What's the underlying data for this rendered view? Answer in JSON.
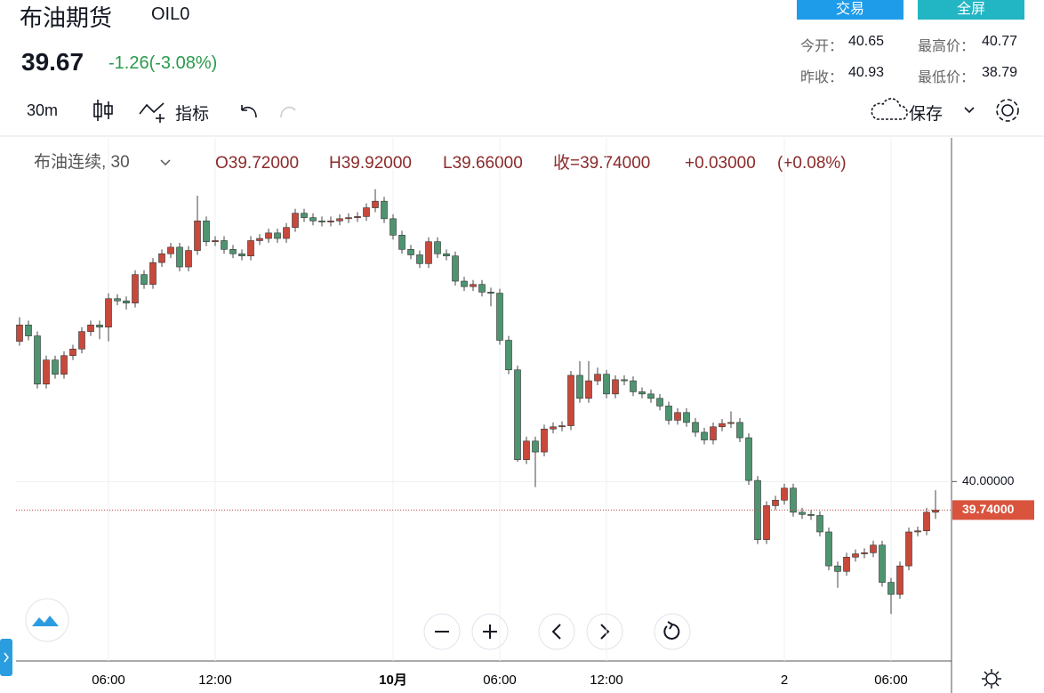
{
  "header": {
    "title": "布油期货",
    "code": "OIL0",
    "price": "39.67",
    "change": "-1.26(-3.08%)",
    "buttons": [
      "交易",
      "全屏"
    ],
    "stats": [
      {
        "label": "今开：",
        "value": "40.65"
      },
      {
        "label": "最高价：",
        "value": "40.77"
      },
      {
        "label": "昨收：",
        "value": "40.93"
      },
      {
        "label": "最低价：",
        "value": "38.79"
      }
    ]
  },
  "toolbar": {
    "interval": "30m",
    "indicators": "指标",
    "save": "保存"
  },
  "chart_data": {
    "type": "candlestick",
    "legend_title": "布油连续, 30",
    "ohlc_labels": [
      "O39.72000",
      "H39.92000",
      "L39.66000",
      "收=39.74000",
      "+0.03000",
      "(+0.08%)"
    ],
    "up_color": "#c8493b",
    "down_color": "#4f9470",
    "categories": [
      null,
      null,
      null,
      null,
      null,
      null,
      null,
      null,
      null,
      null,
      "06:00",
      null,
      null,
      null,
      null,
      null,
      null,
      null,
      null,
      null,
      null,
      null,
      "12:00",
      null,
      null,
      null,
      null,
      null,
      null,
      null,
      null,
      null,
      null,
      null,
      null,
      null,
      null,
      null,
      null,
      null,
      null,
      null,
      "10月",
      null,
      null,
      null,
      null,
      null,
      null,
      null,
      null,
      null,
      null,
      null,
      "06:00",
      null,
      null,
      null,
      null,
      null,
      null,
      null,
      null,
      null,
      null,
      null,
      "12:00",
      null,
      null,
      null,
      null,
      null,
      null,
      null,
      null,
      null,
      null,
      null,
      null,
      null,
      null,
      null,
      null,
      null,
      null,
      null,
      "2",
      null,
      null,
      null,
      null,
      null,
      null,
      null,
      null,
      null,
      null,
      null,
      "06:00",
      null,
      null,
      null,
      null,
      null
    ],
    "open": [
      41.28,
      41.43,
      41.33,
      40.89,
      41.11,
      40.98,
      41.15,
      41.21,
      41.37,
      41.43,
      41.41,
      41.67,
      41.65,
      41.63,
      41.89,
      41.8,
      42.0,
      42.08,
      42.14,
      41.96,
      42.11,
      42.38,
      42.19,
      42.2,
      42.12,
      42.08,
      42.06,
      42.2,
      42.22,
      42.27,
      42.22,
      42.32,
      42.45,
      42.41,
      42.38,
      42.37,
      42.38,
      42.4,
      42.41,
      42.42,
      42.5,
      42.56,
      42.4,
      42.25,
      42.12,
      42.07,
      41.99,
      42.19,
      42.08,
      42.06,
      41.83,
      41.78,
      41.8,
      41.73,
      41.72,
      41.29,
      41.02,
      40.2,
      40.37,
      40.27,
      40.48,
      40.5,
      40.51,
      40.97,
      40.76,
      40.92,
      40.98,
      40.8,
      40.93,
      40.92,
      40.82,
      40.8,
      40.76,
      40.69,
      40.56,
      40.63,
      40.54,
      40.45,
      40.38,
      40.5,
      40.53,
      40.54,
      40.4,
      40.01,
      39.47,
      39.78,
      39.83,
      39.94,
      39.72,
      39.7,
      39.69,
      39.54,
      39.23,
      39.18,
      39.31,
      39.34,
      39.35,
      39.42,
      39.08,
      38.97,
      39.23,
      39.54,
      39.55,
      39.72
    ],
    "high": [
      41.5,
      41.47,
      41.37,
      41.15,
      41.15,
      41.19,
      41.25,
      41.41,
      41.47,
      41.47,
      41.72,
      41.71,
      41.69,
      41.93,
      41.93,
      42.04,
      42.12,
      42.18,
      42.18,
      42.15,
      42.61,
      42.42,
      42.24,
      42.24,
      42.16,
      42.12,
      42.24,
      42.26,
      42.31,
      42.31,
      42.36,
      42.49,
      42.49,
      42.45,
      42.42,
      42.42,
      42.44,
      42.45,
      42.46,
      42.54,
      42.67,
      42.6,
      42.44,
      42.29,
      42.16,
      42.11,
      42.23,
      42.23,
      42.12,
      42.1,
      41.87,
      41.84,
      41.84,
      41.77,
      41.76,
      41.33,
      41.06,
      40.41,
      40.41,
      40.52,
      40.54,
      40.55,
      41.01,
      41.1,
      41.1,
      41.04,
      41.02,
      40.97,
      40.97,
      40.96,
      40.86,
      40.84,
      40.8,
      40.73,
      40.67,
      40.67,
      40.58,
      40.49,
      40.54,
      40.57,
      40.64,
      40.58,
      40.44,
      40.05,
      39.82,
      39.87,
      39.98,
      39.98,
      39.76,
      39.74,
      39.73,
      39.58,
      39.27,
      39.35,
      39.38,
      39.39,
      39.46,
      39.46,
      39.12,
      39.27,
      39.58,
      39.59,
      39.76,
      39.92
    ],
    "low": [
      41.24,
      41.29,
      40.85,
      40.85,
      40.94,
      40.94,
      41.11,
      41.17,
      41.33,
      41.3,
      41.28,
      41.61,
      41.57,
      41.59,
      41.76,
      41.76,
      41.96,
      42.04,
      41.92,
      41.92,
      42.07,
      42.15,
      42.15,
      42.08,
      42.04,
      42.02,
      42.02,
      42.16,
      42.18,
      42.18,
      42.18,
      42.28,
      42.37,
      42.34,
      42.33,
      42.33,
      42.34,
      42.36,
      42.37,
      42.38,
      42.46,
      42.36,
      42.21,
      42.08,
      42.03,
      41.95,
      41.95,
      42.04,
      42.02,
      41.79,
      41.74,
      41.74,
      41.69,
      41.6,
      41.25,
      40.98,
      40.18,
      40.16,
      39.95,
      40.23,
      40.44,
      40.46,
      40.47,
      40.72,
      40.72,
      40.88,
      40.76,
      40.76,
      40.88,
      40.78,
      40.76,
      40.72,
      40.65,
      40.52,
      40.52,
      40.5,
      40.41,
      40.34,
      40.34,
      40.46,
      40.49,
      40.36,
      39.97,
      39.43,
      39.43,
      39.74,
      39.79,
      39.68,
      39.66,
      39.65,
      39.5,
      39.19,
      39.03,
      39.14,
      39.27,
      39.3,
      39.31,
      39.04,
      38.79,
      38.93,
      39.19,
      39.5,
      39.51,
      39.66
    ],
    "close": [
      41.43,
      41.33,
      40.89,
      41.11,
      40.98,
      41.15,
      41.21,
      41.37,
      41.43,
      41.41,
      41.67,
      41.65,
      41.63,
      41.89,
      41.8,
      42.0,
      42.08,
      42.14,
      41.96,
      42.11,
      42.38,
      42.19,
      42.2,
      42.12,
      42.08,
      42.06,
      42.2,
      42.22,
      42.27,
      42.22,
      42.32,
      42.45,
      42.41,
      42.38,
      42.37,
      42.38,
      42.4,
      42.41,
      42.42,
      42.5,
      42.56,
      42.4,
      42.25,
      42.12,
      42.07,
      41.99,
      42.19,
      42.08,
      42.06,
      41.83,
      41.78,
      41.8,
      41.73,
      41.72,
      41.29,
      41.02,
      40.2,
      40.37,
      40.27,
      40.48,
      40.5,
      40.51,
      40.97,
      40.76,
      40.92,
      40.98,
      40.8,
      40.93,
      40.92,
      40.82,
      40.8,
      40.76,
      40.69,
      40.56,
      40.63,
      40.54,
      40.45,
      40.38,
      40.5,
      40.53,
      40.54,
      40.4,
      40.01,
      39.47,
      39.78,
      39.83,
      39.94,
      39.72,
      39.7,
      39.69,
      39.54,
      39.23,
      39.18,
      39.31,
      39.34,
      39.35,
      39.42,
      39.08,
      38.97,
      39.23,
      39.54,
      39.55,
      39.72,
      39.74
    ],
    "ylim": [
      38.362,
      43.138
    ],
    "yticks": [
      {
        "value": 40,
        "label": "40.00000"
      }
    ],
    "last_price": {
      "value": 39.74,
      "label": "39.74000"
    },
    "grid": true
  }
}
